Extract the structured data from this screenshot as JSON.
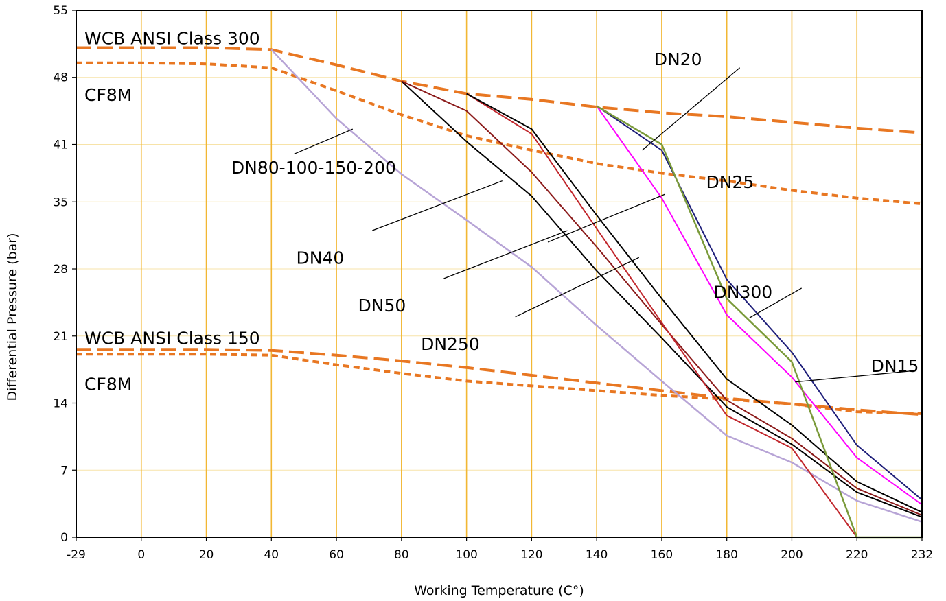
{
  "chart_data": {
    "type": "line",
    "xlabel": "Working Temperature (C°)",
    "ylabel": "Differential Pressure (bar)",
    "x_ticks": [
      -29,
      0,
      20,
      40,
      60,
      80,
      100,
      120,
      140,
      160,
      180,
      200,
      220,
      232
    ],
    "x_tick_labels": [
      "-29",
      "0",
      "20",
      "40",
      "60",
      "80",
      "100",
      "120",
      "140",
      "160",
      "180",
      "200",
      "220",
      "232"
    ],
    "y_ticks": [
      0,
      7,
      14,
      21,
      28,
      35,
      41,
      48,
      55
    ],
    "y_tick_labels": [
      "0",
      "7",
      "14",
      "21",
      "28",
      "35",
      "41",
      "48",
      "55"
    ],
    "ylim": [
      0,
      55
    ],
    "grid": {
      "vertical": true,
      "horizontal": true,
      "vertical_color": "#F2B733",
      "horizontal_color": "#F7E3A8"
    },
    "series": [
      {
        "name": "WCB ANSI Class 300",
        "color": "#E87722",
        "dash": "long",
        "width": 4,
        "points": [
          [
            -29,
            51.1
          ],
          [
            0,
            51.1
          ],
          [
            20,
            51.1
          ],
          [
            40,
            50.9
          ],
          [
            60,
            49.3
          ],
          [
            80,
            47.6
          ],
          [
            100,
            46.3
          ],
          [
            120,
            45.7
          ],
          [
            140,
            44.9
          ],
          [
            160,
            44.3
          ],
          [
            180,
            43.9
          ],
          [
            200,
            43.3
          ],
          [
            220,
            42.7
          ],
          [
            232,
            42.2
          ]
        ]
      },
      {
        "name": "CF8M",
        "color": "#E87722",
        "dash": "short",
        "width": 4,
        "points": [
          [
            -29,
            49.5
          ],
          [
            0,
            49.5
          ],
          [
            20,
            49.4
          ],
          [
            40,
            49.0
          ],
          [
            60,
            46.6
          ],
          [
            80,
            44.1
          ],
          [
            100,
            41.9
          ],
          [
            120,
            40.4
          ],
          [
            140,
            39.0
          ],
          [
            160,
            38.0
          ],
          [
            180,
            37.2
          ],
          [
            200,
            36.2
          ],
          [
            220,
            35.4
          ],
          [
            232,
            34.8
          ]
        ]
      },
      {
        "name": "WCB ANSI Class 150",
        "color": "#E87722",
        "dash": "long",
        "width": 4,
        "points": [
          [
            -29,
            19.6
          ],
          [
            0,
            19.6
          ],
          [
            20,
            19.6
          ],
          [
            40,
            19.5
          ],
          [
            60,
            19.0
          ],
          [
            80,
            18.4
          ],
          [
            100,
            17.7
          ],
          [
            120,
            16.9
          ],
          [
            140,
            16.1
          ],
          [
            160,
            15.3
          ],
          [
            180,
            14.5
          ],
          [
            200,
            13.9
          ],
          [
            220,
            13.3
          ],
          [
            232,
            12.8
          ]
        ]
      },
      {
        "name": "CF8M",
        "color": "#E87722",
        "dash": "short",
        "width": 4,
        "points": [
          [
            -29,
            19.1
          ],
          [
            0,
            19.1
          ],
          [
            20,
            19.1
          ],
          [
            40,
            19.0
          ],
          [
            60,
            18.0
          ],
          [
            80,
            17.1
          ],
          [
            100,
            16.3
          ],
          [
            120,
            15.8
          ],
          [
            140,
            15.3
          ],
          [
            160,
            14.8
          ],
          [
            180,
            14.4
          ],
          [
            200,
            13.9
          ],
          [
            220,
            13.1
          ],
          [
            232,
            12.9
          ]
        ]
      },
      {
        "name": "DN80-100-150-200",
        "color": "#B7A4D6",
        "dash": "solid",
        "width": 2.5,
        "points": [
          [
            40,
            50.9
          ],
          [
            60,
            43.7
          ],
          [
            80,
            37.9
          ],
          [
            100,
            33.1
          ],
          [
            120,
            28.2
          ],
          [
            140,
            22.1
          ],
          [
            160,
            16.3
          ],
          [
            180,
            10.6
          ],
          [
            200,
            7.8
          ],
          [
            220,
            3.8
          ],
          [
            232,
            1.6
          ]
        ]
      },
      {
        "name": "DN40",
        "color": "#000000",
        "dash": "solid",
        "width": 2,
        "points": [
          [
            80,
            47.6
          ],
          [
            100,
            41.3
          ],
          [
            120,
            35.6
          ],
          [
            140,
            27.8
          ],
          [
            160,
            20.8
          ],
          [
            180,
            13.6
          ],
          [
            200,
            9.7
          ],
          [
            220,
            4.7
          ],
          [
            232,
            2.1
          ]
        ]
      },
      {
        "name": "DN50",
        "color": "#8B1A1A",
        "dash": "solid",
        "width": 2,
        "points": [
          [
            80,
            47.6
          ],
          [
            100,
            44.5
          ],
          [
            120,
            38.1
          ],
          [
            140,
            30.3
          ],
          [
            160,
            22.2
          ],
          [
            180,
            14.3
          ],
          [
            200,
            10.3
          ],
          [
            220,
            5.1
          ],
          [
            232,
            2.3
          ]
        ]
      },
      {
        "name": "DN250",
        "color": "#C1272D",
        "dash": "solid",
        "width": 2,
        "points": [
          [
            100,
            46.3
          ],
          [
            120,
            42.1
          ],
          [
            140,
            32.2
          ],
          [
            160,
            22.4
          ],
          [
            180,
            12.7
          ],
          [
            200,
            9.3
          ],
          [
            220,
            0.0
          ]
        ]
      },
      {
        "name": "DN25",
        "color": "#000000",
        "dash": "solid",
        "width": 2,
        "points": [
          [
            100,
            46.3
          ],
          [
            120,
            42.6
          ],
          [
            140,
            33.6
          ],
          [
            160,
            24.9
          ],
          [
            180,
            16.5
          ],
          [
            200,
            11.7
          ],
          [
            220,
            5.8
          ],
          [
            232,
            2.6
          ]
        ]
      },
      {
        "name": "DN20",
        "color": "#FF00FF",
        "dash": "solid",
        "width": 2,
        "points": [
          [
            140,
            45.0
          ],
          [
            160,
            35.4
          ],
          [
            180,
            23.2
          ],
          [
            200,
            16.7
          ],
          [
            220,
            8.3
          ],
          [
            232,
            3.4
          ]
        ]
      },
      {
        "name": "DN15",
        "color": "#1F1F7A",
        "dash": "solid",
        "width": 2,
        "points": [
          [
            140,
            45.0
          ],
          [
            160,
            40.4
          ],
          [
            180,
            26.9
          ],
          [
            200,
            19.3
          ],
          [
            220,
            9.6
          ],
          [
            232,
            3.9
          ]
        ]
      },
      {
        "name": "DN300",
        "color": "#7A9A3A",
        "dash": "solid",
        "width": 2.5,
        "points": [
          [
            140,
            45.0
          ],
          [
            160,
            41.0
          ],
          [
            180,
            24.9
          ],
          [
            200,
            18.3
          ],
          [
            220,
            0.0
          ],
          [
            232,
            0.0
          ]
        ]
      }
    ],
    "annotations": [
      {
        "id": "wcb300",
        "text": "WCB  ANSI Class 300",
        "at": [
          -29,
          52.1
        ],
        "anchor": "start",
        "dx": 12,
        "leader": null
      },
      {
        "id": "cf8m-300",
        "text": "CF8M",
        "at": [
          -29,
          46.2
        ],
        "anchor": "start",
        "dx": 12,
        "leader": null
      },
      {
        "id": "wcb150",
        "text": "WCB  ANSI Class 150",
        "at": [
          -29,
          20.8
        ],
        "anchor": "start",
        "dx": 12,
        "leader": null
      },
      {
        "id": "cf8m-150",
        "text": "CF8M",
        "at": [
          -29,
          16.0
        ],
        "anchor": "start",
        "dx": 12,
        "leader": null
      },
      {
        "id": "dn80",
        "text": "DN80-100-150-200",
        "at": [
          53,
          38.6
        ],
        "anchor": "middle",
        "dx": 0,
        "leader": [
          [
            47,
            40.0
          ],
          [
            65,
            42.6
          ]
        ]
      },
      {
        "id": "dn40",
        "text": "DN40",
        "at": [
          55,
          29.2
        ],
        "anchor": "middle",
        "dx": 0,
        "leader": [
          [
            71,
            32.0
          ],
          [
            111,
            37.2
          ]
        ]
      },
      {
        "id": "dn50",
        "text": "DN50",
        "at": [
          74,
          24.2
        ],
        "anchor": "middle",
        "dx": 0,
        "leader": [
          [
            93,
            27.0
          ],
          [
            131,
            32.0
          ]
        ]
      },
      {
        "id": "dn250",
        "text": "DN250",
        "at": [
          95,
          20.2
        ],
        "anchor": "middle",
        "dx": 0,
        "leader": [
          [
            115,
            23.0
          ],
          [
            153,
            29.2
          ]
        ]
      },
      {
        "id": "dn25",
        "text": "DN25",
        "at": [
          181,
          37.1
        ],
        "anchor": "middle",
        "dx": 0,
        "leader": [
          [
            161,
            35.8
          ],
          [
            125,
            30.8
          ]
        ]
      },
      {
        "id": "dn20",
        "text": "DN20",
        "at": [
          165,
          49.9
        ],
        "anchor": "middle",
        "dx": 0,
        "leader": [
          [
            184,
            49.0
          ],
          [
            154,
            40.4
          ]
        ]
      },
      {
        "id": "dn300",
        "text": "DN300",
        "at": [
          185,
          25.6
        ],
        "anchor": "middle",
        "dx": 0,
        "leader": [
          [
            203,
            26.0
          ],
          [
            187,
            22.9
          ]
        ]
      },
      {
        "id": "dn15",
        "text": "DN15",
        "at": [
          227,
          17.9
        ],
        "anchor": "middle",
        "dx": 0,
        "leader": [
          [
            231,
            17.4
          ],
          [
            201,
            16.2
          ]
        ]
      }
    ]
  }
}
